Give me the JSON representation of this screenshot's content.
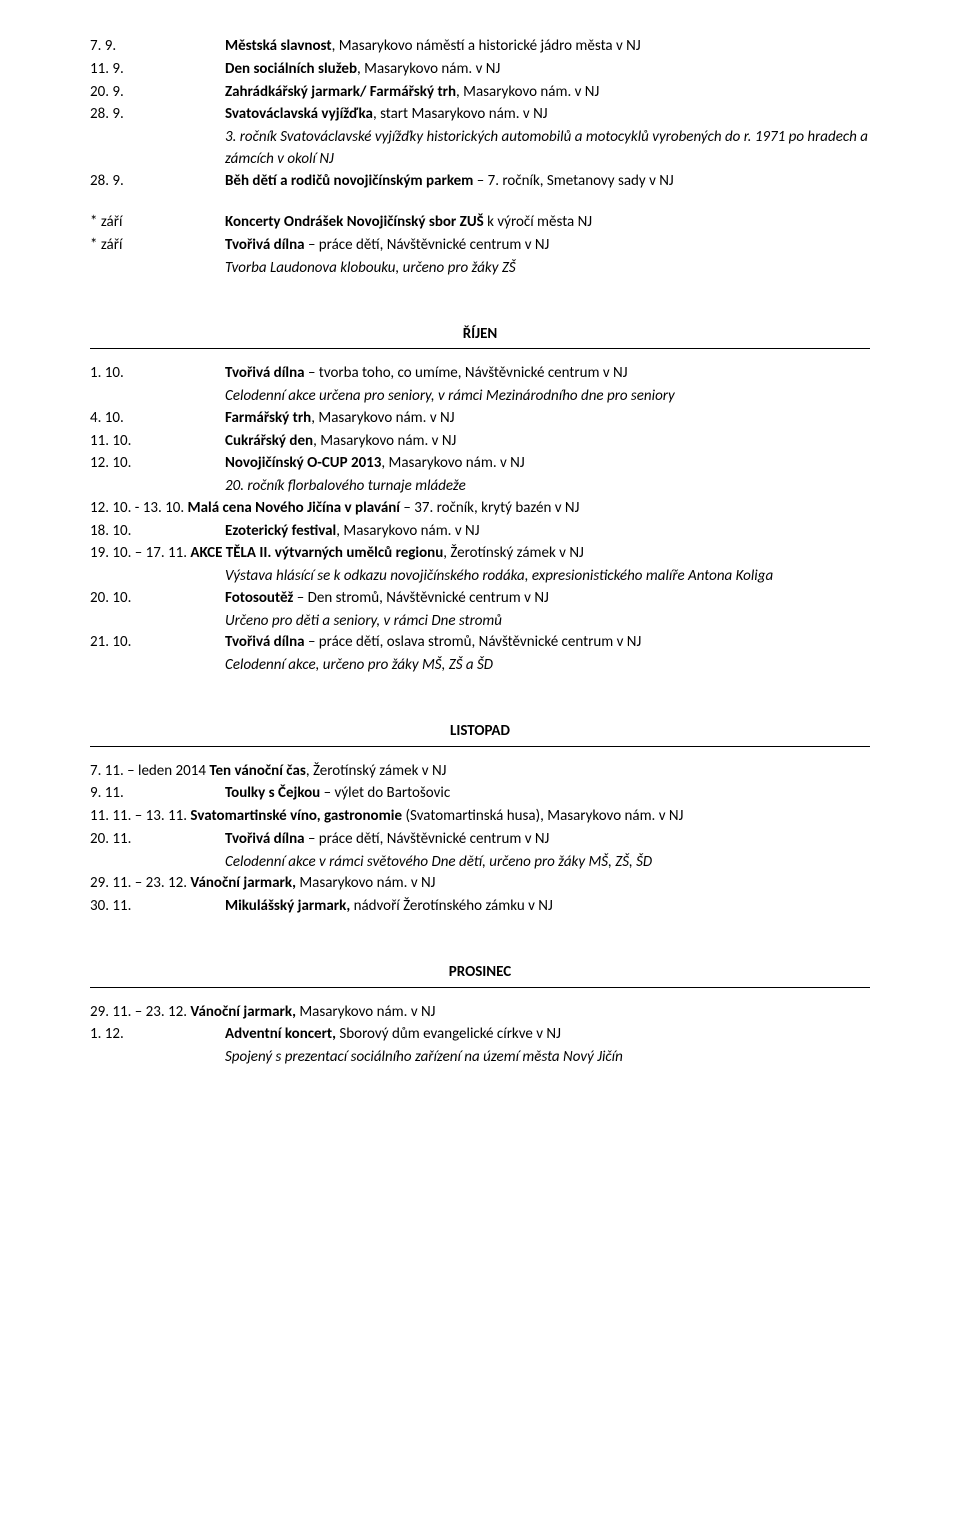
{
  "top": [
    {
      "date": "7. 9.",
      "bold": "Městská slavnost",
      "plain": ", Masarykovo náměstí a historické jádro města v NJ"
    },
    {
      "date": "11. 9.",
      "bold": "Den sociálních služeb",
      "plain": ", Masarykovo nám. v NJ"
    },
    {
      "date": "20. 9.",
      "bold": "Zahrádkářský jarmark/ Farmářský trh",
      "plain": ", Masarykovo nám. v NJ"
    },
    {
      "date": "28. 9.",
      "bold": "Svatováclavská vyjížďka",
      "plain": ", start Masarykovo nám. v NJ"
    }
  ],
  "top_sub_italic": "3. ročník Svatováclavské vyjížďky historických automobilů a motocyklů vyrobených do r. 1971 po hradech a zámcích v okolí NJ",
  "zari_last": {
    "date": "28. 9.",
    "bold": "Běh dětí a rodičů novojičínským parkem",
    "plain": " – 7. ročník, Smetanovy sady v NJ"
  },
  "zari_star": [
    {
      "date": "* září",
      "bold": "Koncerty Ondrášek Novojičínský sbor ZUŠ ",
      "plain": "k výročí města NJ"
    },
    {
      "date": "* září",
      "bold": "Tvořivá dílna",
      "plain": " – práce dětí, Návštěvnické centrum v NJ"
    }
  ],
  "zari_sub_italic": "Tvorba Laudonova klobouku, určeno pro žáky ZŠ",
  "h_rijen": "ŘÍJEN",
  "rijen": [
    {
      "date": "1. 10.",
      "bold": "Tvořivá dílna",
      "plain": " – tvorba toho, co umíme, Návštěvnické centrum v NJ",
      "sub_italic": "Celodenní akce určena pro seniory, v rámci Mezinárodního dne pro seniory"
    },
    {
      "date": "4. 10.",
      "bold": "Farmářský trh",
      "plain": ", Masarykovo nám. v NJ"
    },
    {
      "date": "11. 10.",
      "bold": "Cukrářský den",
      "plain": ", Masarykovo nám. v NJ"
    },
    {
      "date": "12. 10.",
      "bold": "Novojičínský O-CUP 2013",
      "plain": ", Masarykovo nám. v NJ",
      "sub_italic": "20. ročník florbalového turnaje mládeže"
    },
    {
      "date": "12. 10. - 13. 10.",
      "nowrap": true,
      "bold": " Malá cena Nového Jičína v plavání",
      "plain": " – 37. ročník, krytý bazén v NJ"
    },
    {
      "date": "18. 10.",
      "bold": "Ezoterický festival",
      "plain": ", Masarykovo nám. v NJ"
    },
    {
      "date": "19. 10. – 17. 11.",
      "nowrap": true,
      "bold": " AKCE TĚLA II. výtvarných umělců regionu",
      "plain": ", Žerotínský zámek v NJ",
      "sub_italic": "Výstava hlásící se k odkazu novojičínského rodáka, expresionistického malíře Antona Koliga"
    },
    {
      "date": "20. 10.",
      "bold": "Fotosoutěž",
      "plain": " – Den stromů, Návštěvnické centrum v NJ",
      "sub_italic": "Určeno pro děti a seniory, v rámci Dne stromů"
    },
    {
      "date": "21. 10.",
      "bold": "Tvořivá dílna",
      "plain": " – práce dětí, oslava stromů, Návštěvnické centrum v NJ",
      "sub_italic": "Celodenní akce, určeno pro žáky MŠ, ZŠ a ŠD"
    }
  ],
  "h_listopad": "LISTOPAD",
  "listopad": [
    {
      "date": "7. 11. – leden 2014",
      "nowrap": true,
      "bold": "  Ten vánoční čas",
      "plain": ", Žerotínský zámek v NJ"
    },
    {
      "date": "9. 11.",
      "bold": "Toulky s Čejkou",
      "plain": " – výlet do Bartošovic"
    },
    {
      "date": "11. 11. – 13. 11.",
      "nowrap": true,
      "bold": " Svatomartinské víno, gastronomie ",
      "plain": "(Svatomartinská husa), Masarykovo nám. v NJ"
    },
    {
      "date": "20. 11.",
      "bold": "Tvořivá dílna",
      "plain": " – práce dětí, Návštěvnické centrum v NJ",
      "sub_italic": "Celodenní akce v rámci světového Dne dětí, určeno pro žáky MŠ, ZŠ, ŠD"
    },
    {
      "date": "29. 11. – 23. 12.",
      "nowrap": true,
      "bold": " Vánoční jarmark, ",
      "plain": "Masarykovo nám. v NJ"
    },
    {
      "date": "30. 11.",
      "bold": "Mikulášský jarmark, ",
      "plain": "nádvoří Žerotínského zámku v NJ"
    }
  ],
  "h_prosinec": "PROSINEC",
  "prosinec": [
    {
      "date": "29. 11. – 23. 12.",
      "nowrap": true,
      "bold": " Vánoční jarmark, ",
      "plain": "Masarykovo nám. v NJ"
    },
    {
      "date": "1. 12.",
      "bold": "Adventní koncert, ",
      "plain": "Sborový dům evangelické církve v NJ",
      "sub_italic": "Spojený s prezentací sociálního zařízení na území města Nový Jičín"
    }
  ]
}
